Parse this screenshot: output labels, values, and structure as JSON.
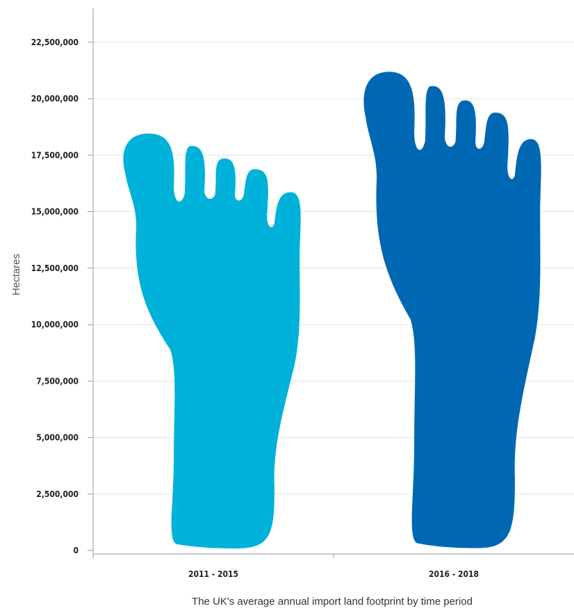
{
  "chart_data": {
    "type": "bar",
    "title": "",
    "xlabel": "The UK's average annual import land footprint by time period",
    "ylabel": "Hectares",
    "categories": [
      "2011 - 2015",
      "2016 - 2018"
    ],
    "values": [
      18550000,
      21300000
    ],
    "ylim": [
      0,
      24000000
    ],
    "yticks": [
      0,
      2500000,
      5000000,
      7500000,
      10000000,
      12500000,
      15000000,
      17500000,
      20000000,
      22500000
    ],
    "ytick_labels": [
      "0",
      "2,500,000",
      "5,000,000",
      "7,500,000",
      "10,000,000",
      "12,500,000",
      "15,000,000",
      "17,500,000",
      "20,000,000",
      "22,500,000"
    ],
    "grid": true,
    "legend": "none",
    "mark_shape": "footprint",
    "colors": [
      "#00b1d9",
      "#0068b3"
    ]
  }
}
